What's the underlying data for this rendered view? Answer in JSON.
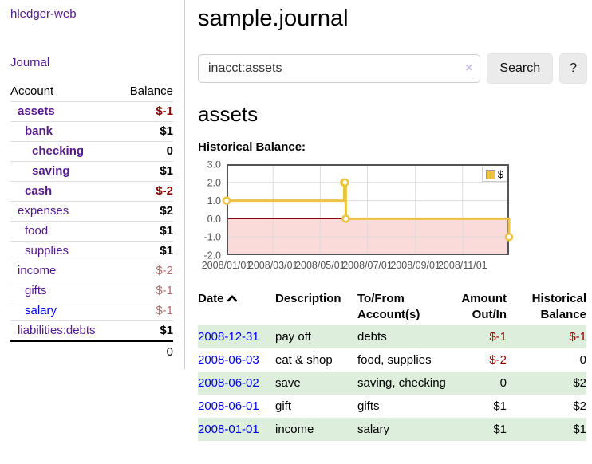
{
  "app": {
    "brand": "hledger-web",
    "nav": {
      "journal": "Journal"
    }
  },
  "colors": {
    "link_purple": "#551a8b",
    "link_blue": "#0000ee",
    "negative_strong": "#8b0000",
    "negative_muted": "#b06b6b",
    "row_highlight_green": "#ddeedd",
    "chart_line_gold": "#edc240",
    "chart_negative_region": "#fbdada",
    "chart_zero_line": "#8b0000"
  },
  "sidebar": {
    "accounts_header": {
      "account": "Account",
      "balance": "Balance"
    },
    "accounts": [
      {
        "name": "assets",
        "depth": 1,
        "matched": true,
        "balance": "$-1",
        "balance_style": "negative-strong"
      },
      {
        "name": "bank",
        "depth": 2,
        "matched": true,
        "balance": "$1",
        "balance_style": "normal"
      },
      {
        "name": "checking",
        "depth": 3,
        "matched": true,
        "balance": "0",
        "balance_style": "normal"
      },
      {
        "name": "saving",
        "depth": 3,
        "matched": true,
        "balance": "$1",
        "balance_style": "normal"
      },
      {
        "name": "cash",
        "depth": 2,
        "matched": true,
        "balance": "$-2",
        "balance_style": "negative-strong"
      },
      {
        "name": "expenses",
        "depth": 1,
        "matched": false,
        "balance": "$2",
        "balance_style": "normal"
      },
      {
        "name": "food",
        "depth": 2,
        "matched": false,
        "balance": "$1",
        "balance_style": "normal"
      },
      {
        "name": "supplies",
        "depth": 2,
        "matched": false,
        "balance": "$1",
        "balance_style": "normal"
      },
      {
        "name": "income",
        "depth": 1,
        "matched": false,
        "balance": "$-2",
        "balance_style": "negative-muted"
      },
      {
        "name": "gifts",
        "depth": 2,
        "matched": false,
        "balance": "$-1",
        "balance_style": "negative-muted"
      },
      {
        "name": "salary",
        "depth": 2,
        "matched": false,
        "link_style": "unvisited",
        "balance": "$-1",
        "balance_style": "negative-muted"
      },
      {
        "name": "liabilities:debts",
        "depth": 1,
        "matched": false,
        "balance": "$1",
        "balance_style": "normal"
      }
    ],
    "total": "0"
  },
  "main": {
    "title": "sample.journal",
    "search": {
      "value": "inacct:assets",
      "clear_icon": "×",
      "search_button": "Search",
      "help_button": "?"
    },
    "account_heading": "assets",
    "chart_title": "Historical Balance:"
  },
  "chart_data": {
    "type": "line",
    "title": "Historical Balance:",
    "legend_position": "top-right",
    "grid": true,
    "x_start": "2008-01-01",
    "x_end": "2008-12-31",
    "ylim": [
      -2,
      3
    ],
    "yticks": [
      "3.0",
      "2.0",
      "1.0",
      "0.0",
      "-1.0",
      "-2.0"
    ],
    "xticks": [
      {
        "date": "2008-01-01",
        "label": "2008/01/01"
      },
      {
        "date": "2008-03-01",
        "label": "2008/03/01"
      },
      {
        "date": "2008-05-01",
        "label": "2008/05/01"
      },
      {
        "date": "2008-07-01",
        "label": "2008/07/01"
      },
      {
        "date": "2008-09-01",
        "label": "2008/09/01"
      },
      {
        "date": "2008-11-01",
        "label": "2008/11/01"
      }
    ],
    "series": [
      {
        "name": "$",
        "color": "#edc240",
        "style": "step",
        "points": [
          {
            "x": "2008-01-01",
            "y": 1
          },
          {
            "x": "2008-06-01",
            "y": 2
          },
          {
            "x": "2008-06-02",
            "y": 2
          },
          {
            "x": "2008-06-03",
            "y": 0
          },
          {
            "x": "2008-12-31",
            "y": -1
          }
        ]
      }
    ],
    "zero_line_color": "#8b0000",
    "negative_region_color": "#fbdada"
  },
  "register": {
    "columns": [
      {
        "label": "Date",
        "sorted": "ascending"
      },
      {
        "label": "Description"
      },
      {
        "label": "To/From Account(s)"
      },
      {
        "label": "Amount Out/In",
        "align": "right"
      },
      {
        "label": "Historical Balance",
        "align": "right"
      }
    ],
    "rows": [
      {
        "date": "2008-12-31",
        "description": "pay off",
        "accounts": "debts",
        "amount": "$-1",
        "amount_negative": true,
        "balance": "$-1",
        "balance_negative": true,
        "highlight": true
      },
      {
        "date": "2008-06-03",
        "description": "eat & shop",
        "accounts": "food, supplies",
        "amount": "$-2",
        "amount_negative": true,
        "balance": "0",
        "balance_negative": false,
        "highlight": false
      },
      {
        "date": "2008-06-02",
        "description": "save",
        "accounts": "saving, checking",
        "amount": "0",
        "amount_negative": false,
        "balance": "$2",
        "balance_negative": false,
        "highlight": true
      },
      {
        "date": "2008-06-01",
        "description": "gift",
        "accounts": "gifts",
        "amount": "$1",
        "amount_negative": false,
        "balance": "$2",
        "balance_negative": false,
        "highlight": false
      },
      {
        "date": "2008-01-01",
        "description": "income",
        "accounts": "salary",
        "amount": "$1",
        "amount_negative": false,
        "balance": "$1",
        "balance_negative": false,
        "highlight": true
      }
    ]
  }
}
